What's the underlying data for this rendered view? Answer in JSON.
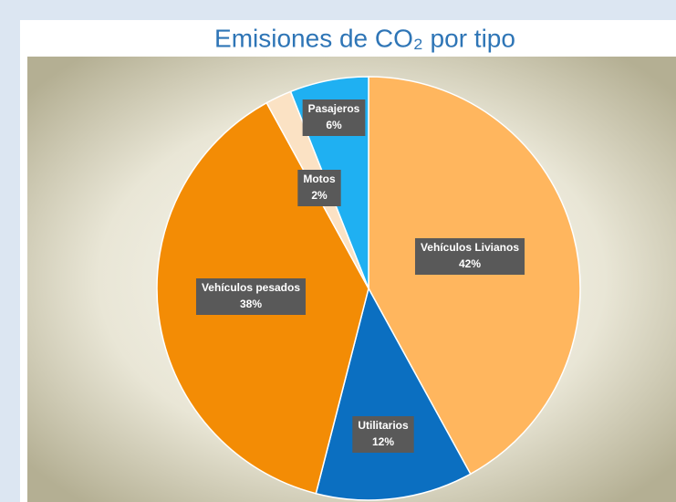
{
  "chart_data": {
    "type": "pie",
    "title": "Emisiones de CO₂ por tipo",
    "categories": [
      "Vehículos Livianos",
      "Utilitarios",
      "Vehículos pesados",
      "Motos",
      "Pasajeros"
    ],
    "values": [
      42,
      12,
      38,
      2,
      6
    ],
    "value_labels": [
      "42%",
      "12%",
      "38%",
      "2%",
      "6%"
    ],
    "colors": [
      "#ffb65e",
      "#0b6fc1",
      "#f38c05",
      "#fbe2c4",
      "#1fb0f2"
    ]
  }
}
